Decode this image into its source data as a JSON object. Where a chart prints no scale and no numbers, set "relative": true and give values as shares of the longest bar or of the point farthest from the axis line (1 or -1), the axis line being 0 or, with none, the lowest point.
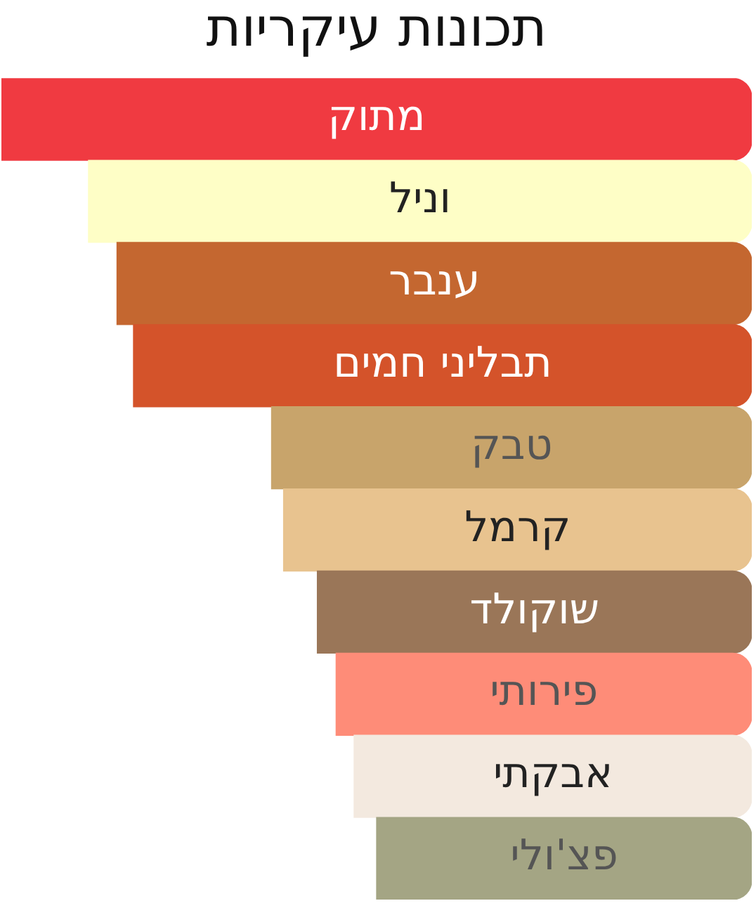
{
  "chart_data": {
    "type": "bar",
    "orientation": "horizontal",
    "relative": true,
    "title": "תכונות עיקריות",
    "categories": [
      "מתוק",
      "וניל",
      "ענבר",
      "תבליני חמים",
      "טבק",
      "קרמל",
      "שוקולד",
      "פירותי",
      "אבקתי",
      "פצ'ולי"
    ],
    "values": [
      1,
      0.884,
      0.846,
      0.824,
      0.64,
      0.624,
      0.579,
      0.554,
      0.53,
      0.5
    ],
    "colors": [
      "#f03a41",
      "#fefec6",
      "#c46730",
      "#d4532a",
      "#c8a46b",
      "#e8c38f",
      "#9a7658",
      "#fe8c78",
      "#f3e9df",
      "#a4a584"
    ],
    "legend": false
  }
}
